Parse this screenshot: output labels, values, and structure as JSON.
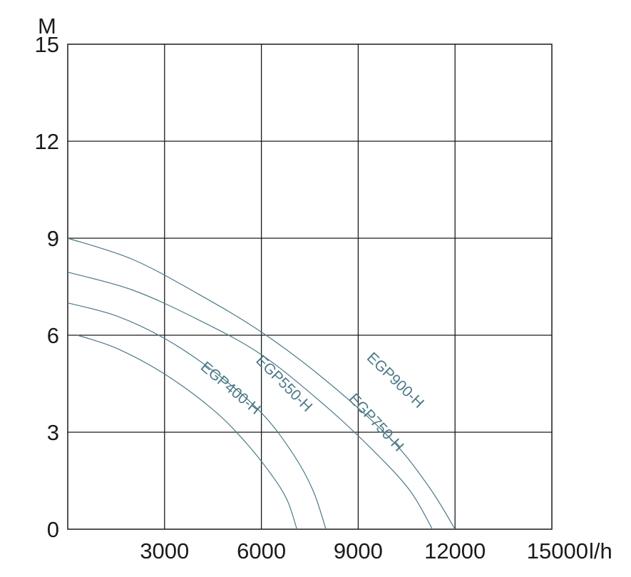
{
  "chart_data": {
    "type": "line",
    "title": "",
    "ylabel": "M",
    "xlabel": "l/h",
    "xlim": [
      0,
      15000
    ],
    "ylim": [
      0,
      15
    ],
    "x_ticks": [
      "3000",
      "6000",
      "9000",
      "12000",
      "15000"
    ],
    "y_ticks": [
      "0",
      "3",
      "6",
      "9",
      "12",
      "15"
    ],
    "grid": true,
    "colors": {
      "curve": "#4d7a88",
      "grid": "#1a1a1a",
      "text": "#1a1a1a"
    },
    "series": [
      {
        "name": "EGP400-H",
        "points": [
          [
            300,
            6.0
          ],
          [
            1500,
            5.6
          ],
          [
            3000,
            4.8
          ],
          [
            4500,
            3.7
          ],
          [
            5500,
            2.7
          ],
          [
            6300,
            1.7
          ],
          [
            6800,
            0.9
          ],
          [
            7100,
            0.0
          ]
        ]
      },
      {
        "name": "EGP550-H",
        "points": [
          [
            0,
            7.0
          ],
          [
            1500,
            6.6
          ],
          [
            3000,
            5.9
          ],
          [
            4500,
            4.9
          ],
          [
            6000,
            3.6
          ],
          [
            7000,
            2.3
          ],
          [
            7600,
            1.2
          ],
          [
            8000,
            0.0
          ]
        ]
      },
      {
        "name": "EGP750-H",
        "points": [
          [
            0,
            7.95
          ],
          [
            2000,
            7.4
          ],
          [
            4000,
            6.5
          ],
          [
            6000,
            5.4
          ],
          [
            8000,
            3.8
          ],
          [
            9500,
            2.4
          ],
          [
            10600,
            1.2
          ],
          [
            11300,
            0.0
          ]
        ]
      },
      {
        "name": "EGP900-H",
        "points": [
          [
            0,
            9.0
          ],
          [
            2000,
            8.35
          ],
          [
            4000,
            7.3
          ],
          [
            6000,
            6.1
          ],
          [
            8000,
            4.6
          ],
          [
            10000,
            2.8
          ],
          [
            11200,
            1.3
          ],
          [
            12000,
            0.0
          ]
        ]
      }
    ]
  }
}
